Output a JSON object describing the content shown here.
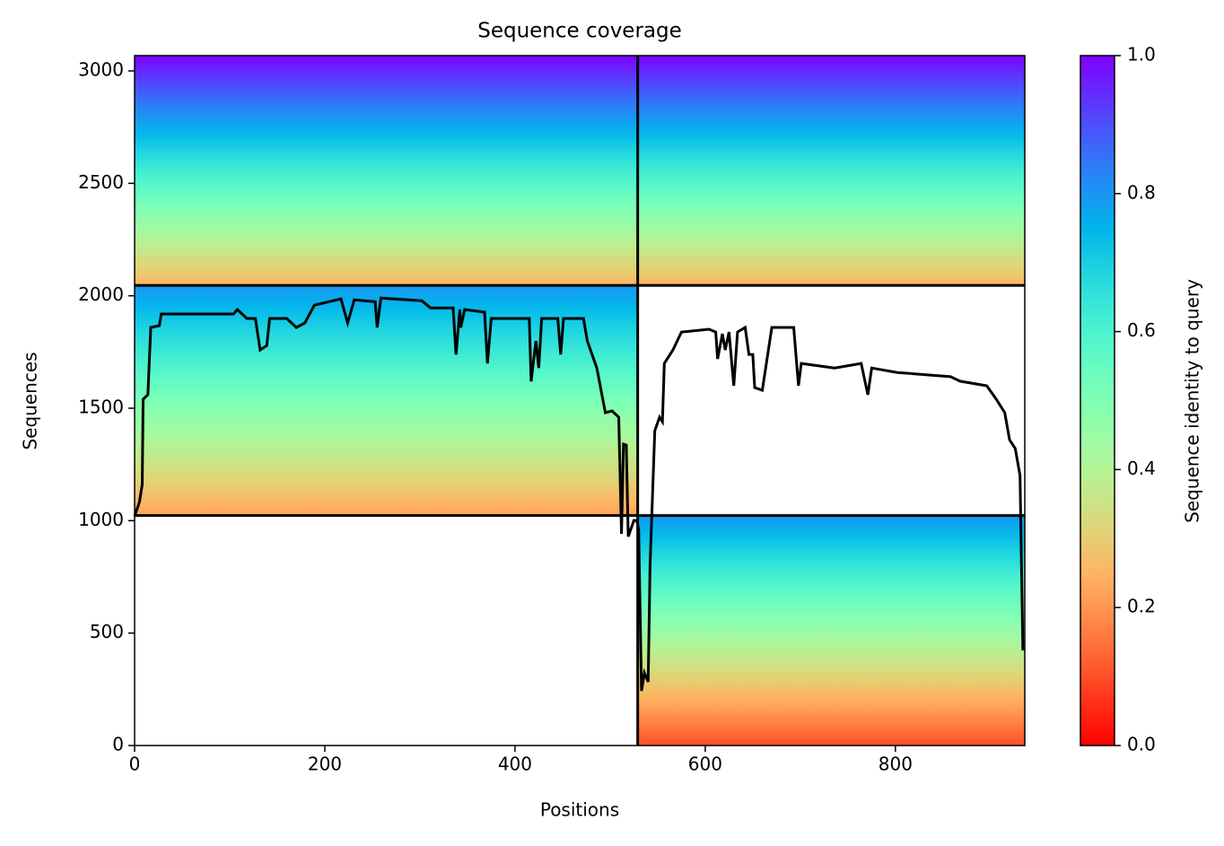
{
  "chart_data": {
    "type": "coverage",
    "title": "Sequence coverage",
    "xlabel": "Positions",
    "ylabel": "Sequences",
    "colorbar_label": "Sequence identity to query",
    "colormap": "rainbow_r",
    "xlim": [
      0,
      936
    ],
    "xticks": [
      0,
      200,
      400,
      600,
      800
    ],
    "ylim": [
      0,
      3068
    ],
    "yticks": [
      0,
      500,
      1000,
      1500,
      2000,
      2500,
      3000
    ],
    "clim": [
      0,
      1
    ],
    "cticks": [
      {
        "value": 0,
        "label": "0.0"
      },
      {
        "value": 0.2,
        "label": "0.2"
      },
      {
        "value": 0.4,
        "label": "0.4"
      },
      {
        "value": 0.6,
        "label": "0.6"
      },
      {
        "value": 0.8,
        "label": "0.8"
      },
      {
        "value": 1,
        "label": "1.0"
      }
    ],
    "blocks": [
      {
        "x": [
          0,
          529
        ],
        "y": [
          2046,
          3068
        ],
        "identity": [
          0.25,
          1.0
        ]
      },
      {
        "x": [
          529,
          936
        ],
        "y": [
          2046,
          3068
        ],
        "identity": [
          0.25,
          1.0
        ]
      },
      {
        "x": [
          0,
          529
        ],
        "y": [
          1023,
          2046
        ],
        "identity": [
          0.22,
          0.8
        ]
      },
      {
        "x": [
          529,
          936
        ],
        "y": [
          0,
          1023
        ],
        "identity": [
          0.1,
          0.8
        ]
      }
    ],
    "chain_breaks_x": [
      529
    ],
    "chain_breaks_y": [
      1023,
      2046
    ],
    "line_color": "#000000",
    "x": [
      0,
      5,
      8,
      9,
      14,
      17,
      26,
      28,
      104,
      108,
      118,
      127,
      132,
      139,
      142,
      160,
      170,
      179,
      189,
      217,
      224,
      231,
      253,
      255,
      259,
      302,
      311,
      335,
      338,
      342,
      343,
      347,
      368,
      371,
      375,
      415,
      417,
      422,
      425,
      428,
      445,
      448,
      451,
      472,
      476,
      486,
      495,
      502,
      509,
      512,
      514,
      517,
      519,
      525,
      528,
      530,
      533,
      536,
      540,
      542,
      547,
      552,
      555,
      557,
      566,
      575,
      604,
      611,
      613,
      618,
      621,
      625,
      630,
      634,
      642,
      646,
      650,
      652,
      660,
      670,
      693,
      698,
      701,
      736,
      764,
      771,
      775,
      802,
      858,
      868,
      896,
      906,
      915,
      920,
      926,
      931,
      934
    ],
    "values": [
      1021,
      1081,
      1161,
      1540,
      1560,
      1859,
      1867,
      1919,
      1919,
      1939,
      1899,
      1899,
      1759,
      1779,
      1899,
      1899,
      1859,
      1879,
      1958,
      1986,
      1879,
      1982,
      1974,
      1859,
      1990,
      1978,
      1946,
      1946,
      1739,
      1939,
      1859,
      1939,
      1927,
      1699,
      1899,
      1899,
      1619,
      1799,
      1679,
      1899,
      1899,
      1739,
      1899,
      1899,
      1799,
      1679,
      1480,
      1488,
      1460,
      941,
      1340,
      1336,
      929,
      1001,
      1001,
      961,
      243,
      323,
      283,
      802,
      1400,
      1460,
      1440,
      1699,
      1759,
      1839,
      1851,
      1839,
      1719,
      1831,
      1759,
      1839,
      1600,
      1839,
      1859,
      1739,
      1739,
      1592,
      1580,
      1859,
      1859,
      1600,
      1699,
      1679,
      1699,
      1560,
      1679,
      1659,
      1640,
      1620,
      1600,
      1540,
      1480,
      1360,
      1320,
      1201,
      423
    ]
  }
}
